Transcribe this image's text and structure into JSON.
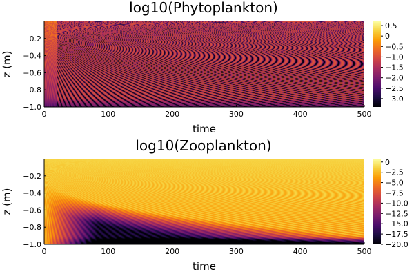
{
  "chart_data": [
    {
      "type": "heatmap",
      "title": "log10(Phytoplankton)",
      "xlabel": "time",
      "ylabel": "z (m)",
      "xlim": [
        0,
        500
      ],
      "ylim": [
        -1.0,
        0.0
      ],
      "xticks": [
        "0",
        "100",
        "200",
        "300",
        "400",
        "500"
      ],
      "yticks": [
        "-1.0",
        "-0.8",
        "-0.6",
        "-0.4",
        "-0.2"
      ],
      "colorbar": {
        "range": [
          -3.4,
          0.7
        ],
        "ticks": [
          "0.5",
          "0",
          "-0.5",
          "-1.0",
          "-1.5",
          "-2.0",
          "-2.5",
          "-3.0"
        ],
        "colormap": "inferno"
      },
      "grid": false,
      "legend": "none"
    },
    {
      "type": "heatmap",
      "title": "log10(Zooplankton)",
      "xlabel": "time",
      "ylabel": "z (m)",
      "xlim": [
        0,
        500
      ],
      "ylim": [
        -1.0,
        0.0
      ],
      "xticks": [
        "0",
        "100",
        "200",
        "300",
        "400",
        "500"
      ],
      "yticks": [
        "-1.0",
        "-0.8",
        "-0.6",
        "-0.4",
        "-0.2"
      ],
      "colorbar": {
        "range": [
          -20.0,
          0.8
        ],
        "ticks": [
          "0",
          "-2.5",
          "-5.0",
          "-7.5",
          "-10.0",
          "-12.5",
          "-15.0",
          "-17.5",
          "-20.0"
        ],
        "colormap": "inferno"
      },
      "grid": false,
      "legend": "none"
    }
  ],
  "colors": {
    "inferno": [
      "#000004",
      "#1b0c41",
      "#4a0c6b",
      "#781c6d",
      "#a52c60",
      "#cf4446",
      "#ed6925",
      "#fb9b06",
      "#f7d13d",
      "#fcffa4"
    ]
  }
}
